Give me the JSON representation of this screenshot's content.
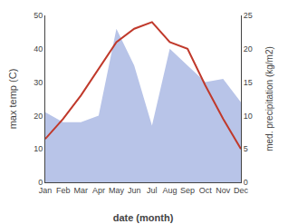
{
  "chart_data": {
    "type": "line",
    "categories": [
      "Jan",
      "Feb",
      "Mar",
      "Apr",
      "May",
      "Jun",
      "Jul",
      "Aug",
      "Sep",
      "Oct",
      "Nov",
      "Dec"
    ],
    "xlabel": "date (month)",
    "ylabel": "max temp (C)",
    "y2label": "med. precipitation (kg/m2)",
    "ylim": [
      0,
      50
    ],
    "yticks": [
      0,
      10,
      20,
      30,
      40,
      50
    ],
    "y2lim": [
      0,
      25
    ],
    "y2ticks": [
      0,
      5,
      10,
      15,
      20,
      25
    ],
    "grid": false,
    "series": [
      {
        "type": "area",
        "axis": "y2",
        "color": "#b8c4e8",
        "values": [
          10.5,
          9,
          9,
          10,
          23,
          17.5,
          8.5,
          20,
          17.5,
          15,
          15.5,
          12
        ]
      },
      {
        "type": "line",
        "color": "#c0392b",
        "values": [
          13,
          19,
          26,
          34,
          42,
          46,
          48,
          42,
          40,
          29,
          19,
          10
        ]
      }
    ]
  }
}
